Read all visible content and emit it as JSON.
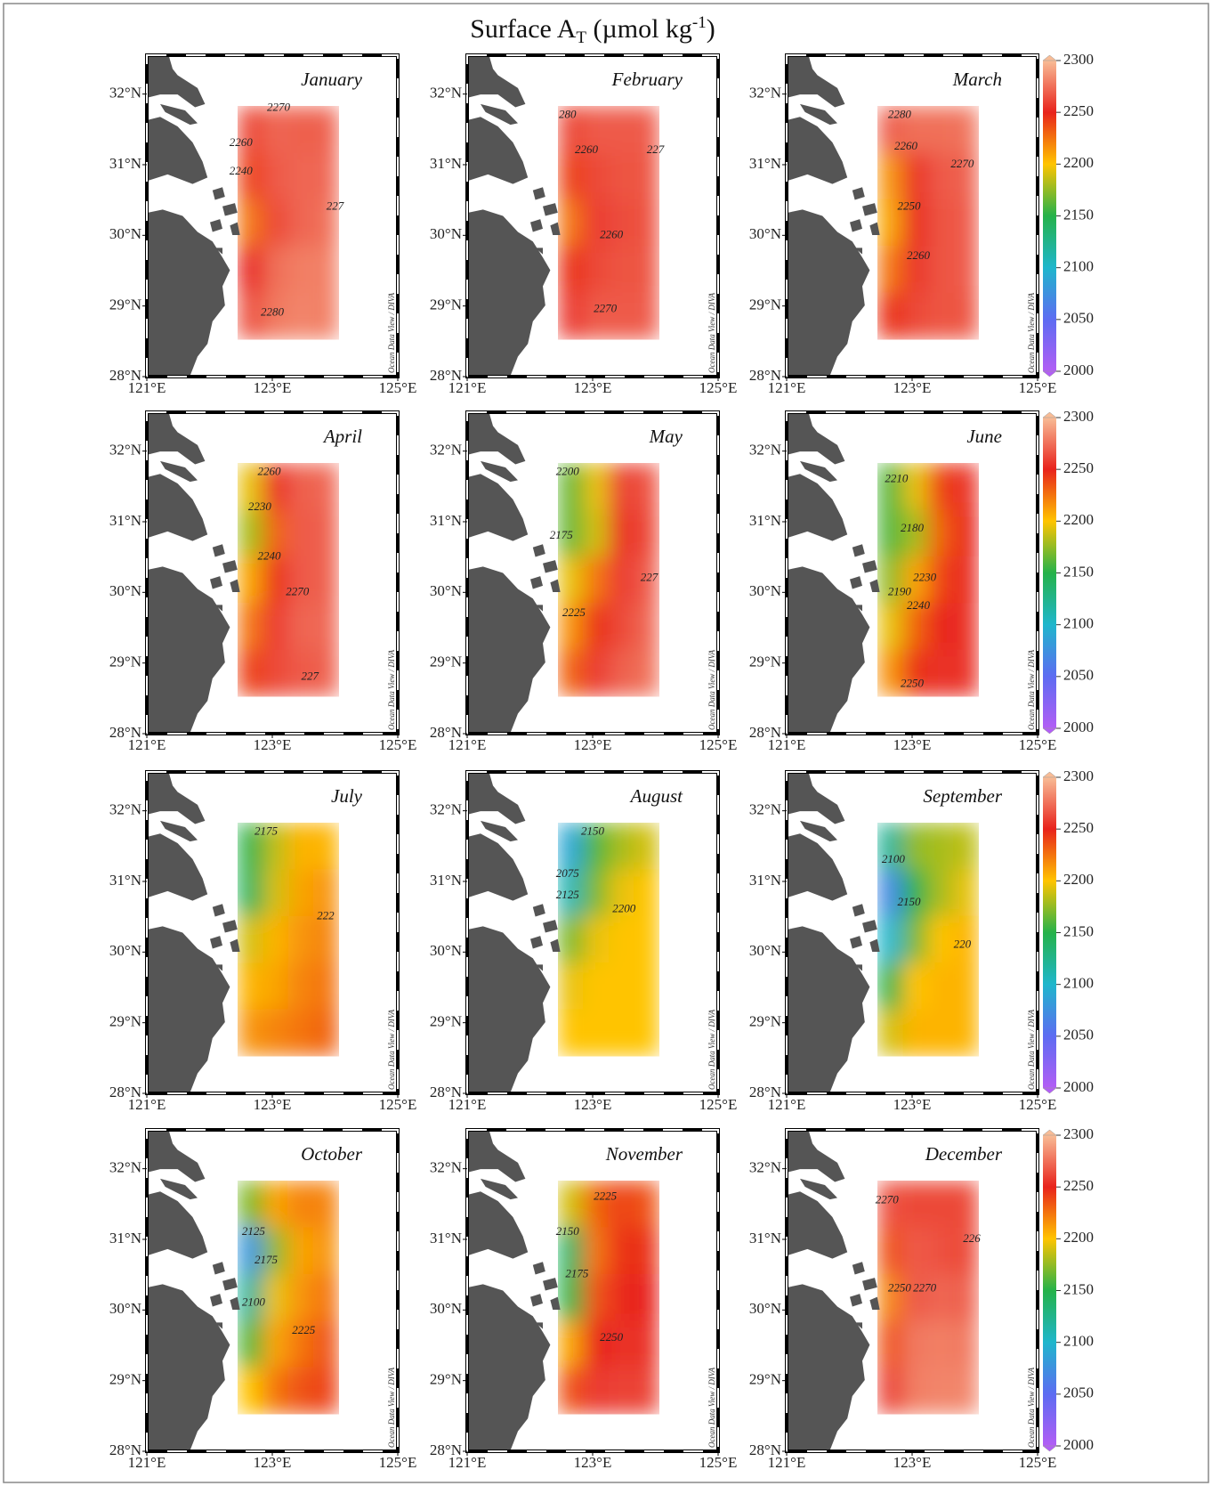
{
  "title": {
    "prefix": "Surface A",
    "sub": "T",
    "middle": " (µmol kg",
    "sup": "-1",
    "suffix": ")"
  },
  "watermark": "Ocean Data View / DIVA",
  "lon_lim": [
    121,
    125
  ],
  "lat_lim": [
    28,
    32.55
  ],
  "lon_ticks": [
    {
      "value": 121,
      "label": "121°E"
    },
    {
      "value": 123,
      "label": "123°E"
    },
    {
      "value": 125,
      "label": "125°E"
    }
  ],
  "lat_ticks": [
    {
      "value": 28,
      "label": "28°N"
    },
    {
      "value": 29,
      "label": "29°N"
    },
    {
      "value": 30,
      "label": "30°N"
    },
    {
      "value": 31,
      "label": "31°N"
    },
    {
      "value": 32,
      "label": "32°N"
    }
  ],
  "grid_lon": [
    122.65,
    123.05,
    123.45,
    123.85
  ],
  "grid_lat": [
    31.5,
    30.84,
    30.18,
    29.52,
    28.86
  ],
  "colorbar": {
    "ticks": [
      2000,
      2050,
      2100,
      2150,
      2200,
      2250,
      2300
    ],
    "colors": [
      "#b25ef5",
      "#5d6cf2",
      "#1fb6cc",
      "#25b24a",
      "#ffc400",
      "#e8231c",
      "#f8bc96"
    ]
  },
  "panels": [
    {
      "month": "January",
      "values": [
        [
          2262,
          2272,
          2270,
          2270
        ],
        [
          2240,
          2268,
          2272,
          2272
        ],
        [
          2225,
          2262,
          2272,
          2275
        ],
        [
          2250,
          2275,
          2280,
          2280
        ],
        [
          2265,
          2278,
          2282,
          2280
        ]
      ],
      "contour_labels": [
        {
          "text": "2270",
          "lon": 123.1,
          "lat": 31.8
        },
        {
          "text": "2260",
          "lon": 122.5,
          "lat": 31.3
        },
        {
          "text": "2240",
          "lon": 122.5,
          "lat": 30.9
        },
        {
          "text": "227",
          "lon": 124.0,
          "lat": 30.4
        },
        {
          "text": "2280",
          "lon": 123.0,
          "lat": 28.9
        }
      ]
    },
    {
      "month": "February",
      "values": [
        [
          2262,
          2268,
          2268,
          2268
        ],
        [
          2240,
          2262,
          2266,
          2266
        ],
        [
          2225,
          2258,
          2264,
          2265
        ],
        [
          2245,
          2262,
          2266,
          2266
        ],
        [
          2258,
          2268,
          2268,
          2268
        ]
      ],
      "contour_labels": [
        {
          "text": "280",
          "lon": 122.6,
          "lat": 31.7
        },
        {
          "text": "2260",
          "lon": 122.9,
          "lat": 31.2
        },
        {
          "text": "227",
          "lon": 124.0,
          "lat": 31.2
        },
        {
          "text": "2260",
          "lon": 123.3,
          "lat": 30.0
        },
        {
          "text": "2270",
          "lon": 123.2,
          "lat": 28.95
        }
      ]
    },
    {
      "month": "March",
      "values": [
        [
          2270,
          2275,
          2275,
          2276
        ],
        [
          2215,
          2255,
          2268,
          2270
        ],
        [
          2210,
          2252,
          2266,
          2268
        ],
        [
          2225,
          2256,
          2266,
          2268
        ],
        [
          2245,
          2262,
          2266,
          2266
        ]
      ],
      "contour_labels": [
        {
          "text": "2280",
          "lon": 122.8,
          "lat": 31.7
        },
        {
          "text": "2260",
          "lon": 122.9,
          "lat": 31.25
        },
        {
          "text": "2270",
          "lon": 123.8,
          "lat": 31.0
        },
        {
          "text": "2250",
          "lon": 122.95,
          "lat": 30.4
        },
        {
          "text": "2260",
          "lon": 123.1,
          "lat": 29.7
        }
      ]
    },
    {
      "month": "April",
      "values": [
        [
          2195,
          2255,
          2270,
          2272
        ],
        [
          2180,
          2230,
          2268,
          2270
        ],
        [
          2210,
          2245,
          2268,
          2270
        ],
        [
          2225,
          2258,
          2272,
          2272
        ],
        [
          2240,
          2262,
          2268,
          2270
        ]
      ],
      "contour_labels": [
        {
          "text": "2260",
          "lon": 122.95,
          "lat": 31.7
        },
        {
          "text": "2230",
          "lon": 122.8,
          "lat": 31.2
        },
        {
          "text": "2240",
          "lon": 122.95,
          "lat": 30.5
        },
        {
          "text": "2270",
          "lon": 123.4,
          "lat": 30.0
        },
        {
          "text": "227",
          "lon": 123.6,
          "lat": 28.8
        }
      ]
    },
    {
      "month": "May",
      "values": [
        [
          2165,
          2195,
          2260,
          2265
        ],
        [
          2165,
          2190,
          2255,
          2262
        ],
        [
          2195,
          2225,
          2258,
          2268
        ],
        [
          2215,
          2245,
          2262,
          2272
        ],
        [
          2230,
          2258,
          2270,
          2275
        ]
      ],
      "contour_labels": [
        {
          "text": "2200",
          "lon": 122.6,
          "lat": 31.7
        },
        {
          "text": "2175",
          "lon": 122.5,
          "lat": 30.8
        },
        {
          "text": "227",
          "lon": 123.9,
          "lat": 30.2
        },
        {
          "text": "2225",
          "lon": 122.7,
          "lat": 29.7
        }
      ]
    },
    {
      "month": "June",
      "values": [
        [
          2160,
          2195,
          2240,
          2255
        ],
        [
          2160,
          2180,
          2230,
          2250
        ],
        [
          2175,
          2210,
          2240,
          2252
        ],
        [
          2195,
          2230,
          2250,
          2255
        ],
        [
          2215,
          2245,
          2255,
          2255
        ]
      ],
      "contour_labels": [
        {
          "text": "2210",
          "lon": 122.75,
          "lat": 31.6
        },
        {
          "text": "2180",
          "lon": 123.0,
          "lat": 30.9
        },
        {
          "text": "2230",
          "lon": 123.2,
          "lat": 30.2
        },
        {
          "text": "2190",
          "lon": 122.8,
          "lat": 30.0
        },
        {
          "text": "2240",
          "lon": 123.1,
          "lat": 29.8
        },
        {
          "text": "2250",
          "lon": 123.0,
          "lat": 28.7
        }
      ]
    },
    {
      "month": "July",
      "values": [
        [
          2150,
          2185,
          2205,
          2205
        ],
        [
          2145,
          2190,
          2210,
          2215
        ],
        [
          2190,
          2205,
          2215,
          2220
        ],
        [
          2205,
          2210,
          2220,
          2225
        ],
        [
          2215,
          2220,
          2225,
          2230
        ]
      ],
      "contour_labels": [
        {
          "text": "2175",
          "lon": 122.9,
          "lat": 31.7
        },
        {
          "text": "222",
          "lon": 123.85,
          "lat": 30.5
        }
      ]
    },
    {
      "month": "August",
      "values": [
        [
          2090,
          2160,
          2180,
          2190
        ],
        [
          2110,
          2170,
          2195,
          2200
        ],
        [
          2170,
          2195,
          2200,
          2200
        ],
        [
          2195,
          2200,
          2200,
          2200
        ],
        [
          2200,
          2200,
          2200,
          2200
        ]
      ],
      "contour_labels": [
        {
          "text": "2150",
          "lon": 123.0,
          "lat": 31.7
        },
        {
          "text": "2075",
          "lon": 122.6,
          "lat": 31.1
        },
        {
          "text": "2125",
          "lon": 122.6,
          "lat": 30.8
        },
        {
          "text": "2200",
          "lon": 123.5,
          "lat": 30.6
        }
      ]
    },
    {
      "month": "September",
      "values": [
        [
          2120,
          2175,
          2180,
          2185
        ],
        [
          2070,
          2150,
          2180,
          2195
        ],
        [
          2100,
          2170,
          2200,
          2205
        ],
        [
          2150,
          2200,
          2205,
          2205
        ],
        [
          2190,
          2205,
          2205,
          2205
        ]
      ],
      "contour_labels": [
        {
          "text": "2100",
          "lon": 122.7,
          "lat": 31.3
        },
        {
          "text": "2150",
          "lon": 122.95,
          "lat": 30.7
        },
        {
          "text": "220",
          "lon": 123.8,
          "lat": 30.1
        }
      ]
    },
    {
      "month": "October",
      "values": [
        [
          2170,
          2210,
          2220,
          2220
        ],
        [
          2080,
          2175,
          2210,
          2215
        ],
        [
          2120,
          2195,
          2215,
          2225
        ],
        [
          2160,
          2210,
          2225,
          2235
        ],
        [
          2200,
          2225,
          2235,
          2240
        ]
      ],
      "contour_labels": [
        {
          "text": "2125",
          "lon": 122.7,
          "lat": 31.1
        },
        {
          "text": "2175",
          "lon": 122.9,
          "lat": 30.7
        },
        {
          "text": "2100",
          "lon": 122.7,
          "lat": 30.1
        },
        {
          "text": "2225",
          "lon": 123.5,
          "lat": 29.7
        }
      ]
    },
    {
      "month": "November",
      "values": [
        [
          2190,
          2230,
          2240,
          2235
        ],
        [
          2140,
          2225,
          2245,
          2245
        ],
        [
          2150,
          2235,
          2248,
          2250
        ],
        [
          2210,
          2250,
          2255,
          2255
        ],
        [
          2235,
          2258,
          2260,
          2260
        ]
      ],
      "contour_labels": [
        {
          "text": "2225",
          "lon": 123.2,
          "lat": 31.6
        },
        {
          "text": "2150",
          "lon": 122.6,
          "lat": 31.1
        },
        {
          "text": "2175",
          "lon": 122.75,
          "lat": 30.5
        },
        {
          "text": "2250",
          "lon": 123.3,
          "lat": 29.6
        }
      ]
    },
    {
      "month": "December",
      "values": [
        [
          2265,
          2262,
          2262,
          2262
        ],
        [
          2235,
          2268,
          2265,
          2262
        ],
        [
          2220,
          2268,
          2272,
          2270
        ],
        [
          2235,
          2278,
          2280,
          2278
        ],
        [
          2260,
          2280,
          2282,
          2282
        ]
      ],
      "contour_labels": [
        {
          "text": "2270",
          "lon": 122.6,
          "lat": 31.55
        },
        {
          "text": "226",
          "lon": 123.95,
          "lat": 31.0
        },
        {
          "text": "2270",
          "lon": 123.2,
          "lat": 30.3
        },
        {
          "text": "2250",
          "lon": 122.8,
          "lat": 30.3
        }
      ]
    }
  ]
}
